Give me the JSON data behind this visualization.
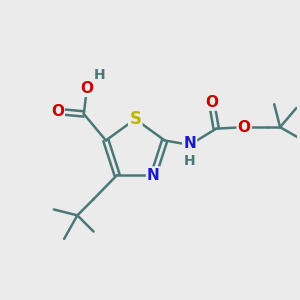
{
  "bg_color": "#ebebeb",
  "atom_colors": {
    "C": "#4a7878",
    "N": "#1a1acc",
    "O": "#cc0000",
    "S": "#b8b800",
    "H": "#4a7878"
  },
  "bond_color": "#4a7878",
  "bond_width": 1.8,
  "font_size": 11,
  "figsize": [
    3.0,
    3.0
  ],
  "dpi": 100
}
